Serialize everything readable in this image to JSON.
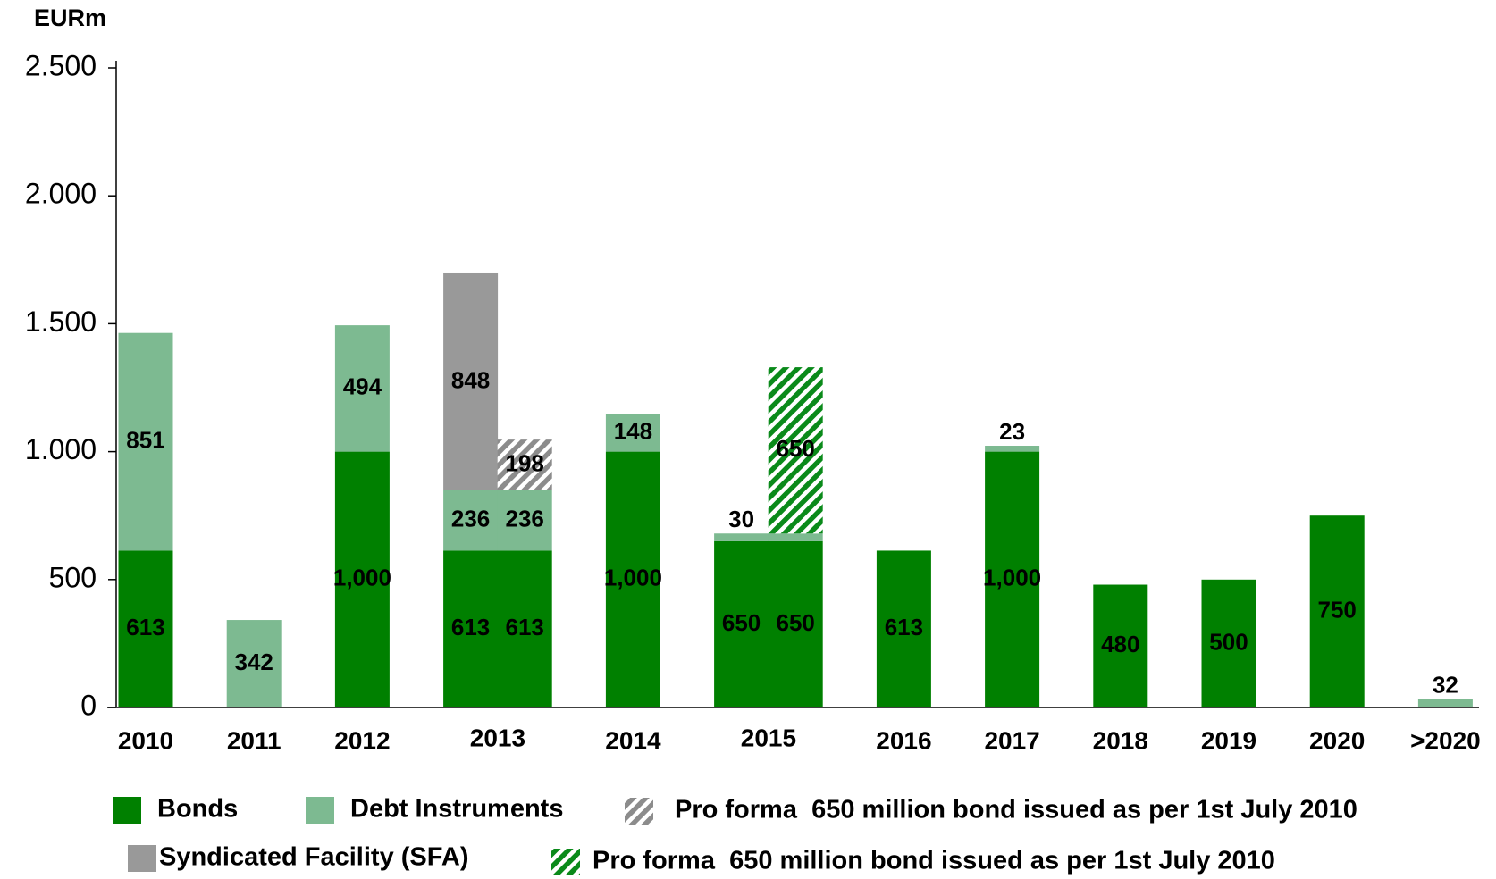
{
  "chart_data": {
    "type": "bar",
    "stacked": true,
    "title": "EURm",
    "categories": [
      "2010",
      "2011",
      "2012",
      "2013",
      null,
      "2014",
      "2015",
      null,
      "2016",
      "2017",
      "2018",
      "2019",
      "2020",
      ">2020"
    ],
    "series": [
      {
        "name": "Bonds",
        "color": "#008000",
        "values": [
          613,
          null,
          1000,
          613,
          613,
          1000,
          650,
          650,
          613,
          1000,
          480,
          500,
          750,
          null
        ],
        "value_labels": [
          "613",
          null,
          "1,000",
          "613",
          "613",
          "1,000",
          "650",
          "650",
          "613",
          "1,000",
          "480",
          "500",
          "750",
          null
        ]
      },
      {
        "name": "Debt Instruments",
        "color": "#7dba91",
        "values": [
          851,
          342,
          494,
          236,
          236,
          148,
          30,
          30,
          null,
          23,
          null,
          null,
          null,
          32
        ]
      },
      {
        "name": "Syndicated Facility (SFA)",
        "color": "#999999",
        "values": [
          null,
          null,
          null,
          848,
          null,
          null,
          null,
          null,
          null,
          null,
          null,
          null,
          null,
          null
        ]
      },
      {
        "name": "Pro forma  650 million bond issued as per 1st July 2010",
        "color": "#8c8c8c",
        "hatch": true,
        "values": [
          null,
          null,
          null,
          null,
          198,
          null,
          null,
          null,
          null,
          null,
          null,
          null,
          null,
          null
        ]
      },
      {
        "name": "Pro forma  650 million bond issued as per 1st July 2010",
        "color": "#0a8a1a",
        "hatch": true,
        "values": [
          null,
          null,
          null,
          null,
          null,
          null,
          null,
          650,
          null,
          null,
          null,
          null,
          null,
          null
        ]
      }
    ],
    "ylim": [
      0,
      2500
    ],
    "yticks": [
      {
        "value": 0,
        "label": "0"
      },
      {
        "value": 500,
        "label": "500"
      },
      {
        "value": 1000,
        "label": "1.000"
      },
      {
        "value": 1500,
        "label": "1.500"
      },
      {
        "value": 2000,
        "label": "2.000"
      },
      {
        "value": 2500,
        "label": "2.500"
      }
    ],
    "legend": "bottom"
  }
}
